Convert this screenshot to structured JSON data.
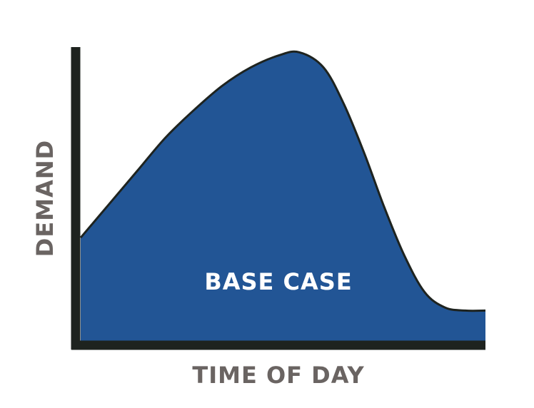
{
  "chart_data": {
    "type": "area",
    "xlabel": "TIME OF DAY",
    "ylabel": "DEMAND",
    "series": [
      {
        "name": "BASE CASE",
        "x": [
          0,
          0.07,
          0.14,
          0.21,
          0.28,
          0.35,
          0.42,
          0.49,
          0.54,
          0.6,
          0.65,
          0.7,
          0.75,
          0.8,
          0.85,
          0.9,
          0.95,
          1.0
        ],
        "values": [
          0.34,
          0.45,
          0.56,
          0.67,
          0.76,
          0.84,
          0.9,
          0.94,
          0.95,
          0.9,
          0.78,
          0.62,
          0.44,
          0.28,
          0.16,
          0.11,
          0.1,
          0.1
        ]
      }
    ],
    "xlim": [
      0,
      1
    ],
    "ylim": [
      0,
      1
    ],
    "grid": false,
    "ticks": false,
    "colors": {
      "fill": "#225595",
      "outline": "#1e231f",
      "axis": "#1e231f",
      "axis_label": "#6a6462",
      "area_label": "#ffffff"
    }
  }
}
